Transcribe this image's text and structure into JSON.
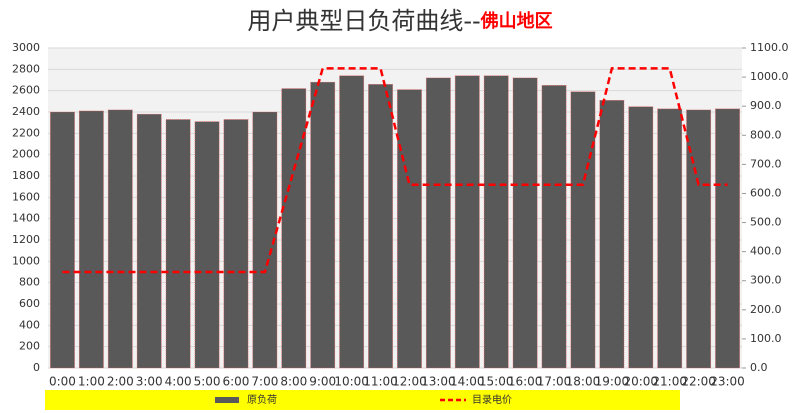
{
  "chart_data": {
    "type": "bar_line",
    "title": "用户典型日负荷曲线--",
    "title_highlight": "佛山地区",
    "categories": [
      "0:00",
      "1:00",
      "2:00",
      "3:00",
      "4:00",
      "5:00",
      "6:00",
      "7:00",
      "8:00",
      "9:00",
      "10:00",
      "11:00",
      "12:00",
      "13:00",
      "14:00",
      "15:00",
      "16:00",
      "17:00",
      "18:00",
      "19:00",
      "20:00",
      "21:00",
      "22:00",
      "23:00"
    ],
    "series": [
      {
        "name": "原负荷",
        "type": "bar",
        "color": "#595959",
        "values": [
          2400,
          2410,
          2420,
          2380,
          2330,
          2310,
          2330,
          2400,
          2620,
          2680,
          2740,
          2660,
          2610,
          2720,
          2740,
          2740,
          2720,
          2650,
          2590,
          2510,
          2450,
          2430,
          2420,
          2430
        ]
      },
      {
        "name": "目录电价",
        "type": "line",
        "axis": "y2",
        "color": "#ff0000",
        "values": [
          330,
          330,
          330,
          330,
          330,
          330,
          330,
          330,
          680,
          1030,
          1030,
          1030,
          630,
          630,
          630,
          630,
          630,
          630,
          630,
          1030,
          1030,
          1030,
          630,
          630
        ]
      }
    ],
    "ylim": [
      0,
      3000
    ],
    "yticks": [
      0,
      200,
      400,
      600,
      800,
      1000,
      1200,
      1400,
      1600,
      1800,
      2000,
      2200,
      2400,
      2600,
      2800,
      3000
    ],
    "y2lim": [
      0,
      1100
    ],
    "y2ticks": [
      {
        "value": 0,
        "label": "0.0"
      },
      {
        "value": 100,
        "label": "100.0"
      },
      {
        "value": 200,
        "label": "200.0"
      },
      {
        "value": 300,
        "label": "300.0"
      },
      {
        "value": 400,
        "label": "400.0"
      },
      {
        "value": 500,
        "label": "500.0"
      },
      {
        "value": 600,
        "label": "600.0"
      },
      {
        "value": 700,
        "label": "700.0"
      },
      {
        "value": 800,
        "label": "800.0"
      },
      {
        "value": 900,
        "label": "900.0"
      },
      {
        "value": 1000,
        "label": "1000.0"
      },
      {
        "value": 1100,
        "label": "1100.0"
      }
    ],
    "grid": true
  }
}
